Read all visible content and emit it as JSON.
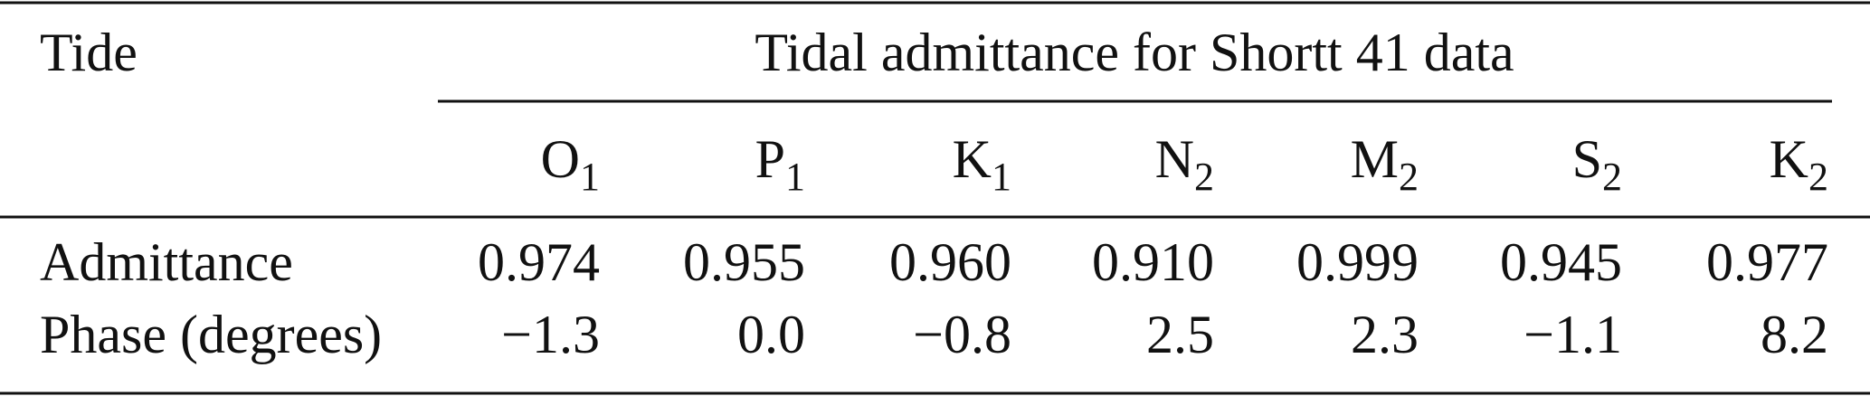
{
  "table": {
    "stub_header": "Tide",
    "spanner": "Tidal admittance for Shortt 41 data",
    "columns": [
      {
        "name": "O",
        "sub": "1"
      },
      {
        "name": "P",
        "sub": "1"
      },
      {
        "name": "K",
        "sub": "1"
      },
      {
        "name": "N",
        "sub": "2"
      },
      {
        "name": "M",
        "sub": "2"
      },
      {
        "name": "S",
        "sub": "2"
      },
      {
        "name": "K",
        "sub": "2"
      }
    ],
    "rows": [
      {
        "label": "Admittance",
        "cells": [
          "0.974",
          "0.955",
          "0.960",
          "0.910",
          "0.999",
          "0.945",
          "0.977"
        ]
      },
      {
        "label": "Phase (degrees)",
        "cells": [
          "−1.3",
          "0.0",
          "−0.8",
          "2.5",
          "2.3",
          "−1.1",
          "8.2"
        ]
      }
    ]
  }
}
